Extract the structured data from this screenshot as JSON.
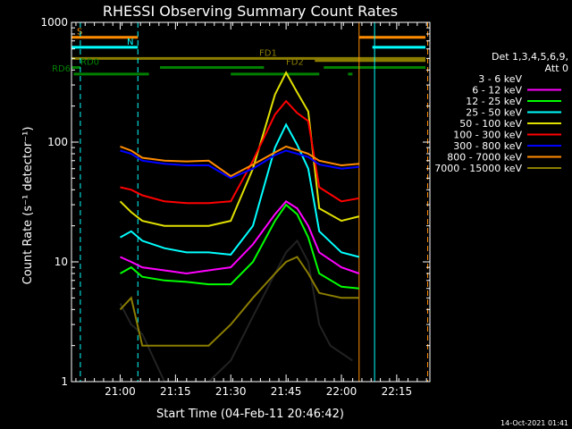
{
  "chart_data": {
    "type": "line",
    "title": "RHESSI Observing Summary Count Rates",
    "ylabel": "Count Rate (s⁻¹ detector⁻¹)",
    "xlabel": "Start Time (04-Feb-11 20:46:42)",
    "yscale": "log",
    "ylim": [
      1,
      1000
    ],
    "xlim_minutes": [
      20.78,
      22.4
    ],
    "y_ticks": [
      "1",
      "10",
      "100",
      "1000"
    ],
    "x_ticks": [
      {
        "t": 21.0,
        "label": "21:00"
      },
      {
        "t": 21.25,
        "label": "21:15"
      },
      {
        "t": 21.5,
        "label": "21:30"
      },
      {
        "t": 21.75,
        "label": "21:45"
      },
      {
        "t": 22.0,
        "label": "22:00"
      },
      {
        "t": 22.25,
        "label": "22:15"
      }
    ],
    "legend_header": [
      "Det 1,3,4,5,6,9,",
      "Att 0"
    ],
    "legend_placement": "right",
    "timestamp": "14-Oct-2021 01:41",
    "series": [
      {
        "name": "3 - 6 keV",
        "color": "#000000",
        "points": [
          [
            21.0,
            4.5
          ],
          [
            21.05,
            3.0
          ],
          [
            21.1,
            2.5
          ],
          [
            21.2,
            1.0
          ],
          [
            21.4,
            1.0
          ],
          [
            21.5,
            1.5
          ],
          [
            21.6,
            3.5
          ],
          [
            21.7,
            8
          ],
          [
            21.75,
            12
          ],
          [
            21.8,
            15
          ],
          [
            21.85,
            10
          ],
          [
            21.9,
            3
          ],
          [
            21.95,
            2
          ],
          [
            22.05,
            1.5
          ]
        ]
      },
      {
        "name": "6 - 12 keV",
        "color": "#ff00ff",
        "points": [
          [
            21.0,
            11
          ],
          [
            21.05,
            10
          ],
          [
            21.1,
            9
          ],
          [
            21.2,
            8.5
          ],
          [
            21.3,
            8
          ],
          [
            21.4,
            8.5
          ],
          [
            21.5,
            9
          ],
          [
            21.6,
            14
          ],
          [
            21.7,
            25
          ],
          [
            21.75,
            32
          ],
          [
            21.8,
            28
          ],
          [
            21.85,
            20
          ],
          [
            21.9,
            12
          ],
          [
            22.0,
            9
          ],
          [
            22.08,
            8
          ]
        ]
      },
      {
        "name": "12 - 25 keV",
        "color": "#00ff00",
        "points": [
          [
            21.0,
            8
          ],
          [
            21.05,
            9
          ],
          [
            21.1,
            7.5
          ],
          [
            21.2,
            7
          ],
          [
            21.3,
            6.8
          ],
          [
            21.4,
            6.5
          ],
          [
            21.5,
            6.5
          ],
          [
            21.6,
            10
          ],
          [
            21.7,
            22
          ],
          [
            21.75,
            30
          ],
          [
            21.8,
            25
          ],
          [
            21.85,
            16
          ],
          [
            21.9,
            8
          ],
          [
            22.0,
            6.2
          ],
          [
            22.08,
            6
          ]
        ]
      },
      {
        "name": "25 - 50 keV",
        "color": "#00ffff",
        "points": [
          [
            21.0,
            16
          ],
          [
            21.05,
            18
          ],
          [
            21.1,
            15
          ],
          [
            21.2,
            13
          ],
          [
            21.3,
            12
          ],
          [
            21.4,
            12
          ],
          [
            21.5,
            11.5
          ],
          [
            21.6,
            20
          ],
          [
            21.7,
            90
          ],
          [
            21.75,
            140
          ],
          [
            21.8,
            95
          ],
          [
            21.85,
            60
          ],
          [
            21.9,
            18
          ],
          [
            22.0,
            12
          ],
          [
            22.08,
            11
          ]
        ]
      },
      {
        "name": "50 - 100 keV",
        "color": "#e0e000",
        "points": [
          [
            21.0,
            32
          ],
          [
            21.05,
            26
          ],
          [
            21.1,
            22
          ],
          [
            21.2,
            20
          ],
          [
            21.3,
            20
          ],
          [
            21.4,
            20
          ],
          [
            21.5,
            22
          ],
          [
            21.6,
            60
          ],
          [
            21.7,
            250
          ],
          [
            21.75,
            380
          ],
          [
            21.8,
            260
          ],
          [
            21.85,
            180
          ],
          [
            21.9,
            28
          ],
          [
            22.0,
            22
          ],
          [
            22.08,
            24
          ]
        ]
      },
      {
        "name": "100 - 300 keV",
        "color": "#ff0000",
        "points": [
          [
            21.0,
            42
          ],
          [
            21.05,
            40
          ],
          [
            21.1,
            36
          ],
          [
            21.2,
            32
          ],
          [
            21.3,
            31
          ],
          [
            21.4,
            31
          ],
          [
            21.5,
            32
          ],
          [
            21.6,
            70
          ],
          [
            21.7,
            170
          ],
          [
            21.75,
            220
          ],
          [
            21.8,
            175
          ],
          [
            21.85,
            150
          ],
          [
            21.9,
            42
          ],
          [
            22.0,
            32
          ],
          [
            22.08,
            34
          ]
        ]
      },
      {
        "name": "300 - 800 keV",
        "color": "#0000ff",
        "points": [
          [
            21.0,
            85
          ],
          [
            21.05,
            80
          ],
          [
            21.1,
            70
          ],
          [
            21.2,
            66
          ],
          [
            21.3,
            64
          ],
          [
            21.4,
            64
          ],
          [
            21.5,
            50
          ],
          [
            21.6,
            60
          ],
          [
            21.7,
            78
          ],
          [
            21.75,
            85
          ],
          [
            21.8,
            80
          ],
          [
            21.85,
            75
          ],
          [
            21.9,
            65
          ],
          [
            22.0,
            60
          ],
          [
            22.08,
            62
          ]
        ]
      },
      {
        "name": "800 - 7000 keV",
        "color": "#ff8c00",
        "points": [
          [
            21.0,
            92
          ],
          [
            21.05,
            85
          ],
          [
            21.1,
            74
          ],
          [
            21.2,
            70
          ],
          [
            21.3,
            69
          ],
          [
            21.4,
            70
          ],
          [
            21.5,
            52
          ],
          [
            21.6,
            65
          ],
          [
            21.7,
            82
          ],
          [
            21.75,
            92
          ],
          [
            21.8,
            86
          ],
          [
            21.85,
            80
          ],
          [
            21.9,
            70
          ],
          [
            22.0,
            64
          ],
          [
            22.08,
            66
          ]
        ]
      },
      {
        "name": "7000 - 15000 keV",
        "color": "#8b7d00",
        "points": [
          [
            21.0,
            4
          ],
          [
            21.05,
            5
          ],
          [
            21.1,
            2
          ],
          [
            21.2,
            2
          ],
          [
            21.3,
            2
          ],
          [
            21.4,
            2
          ],
          [
            21.5,
            3
          ],
          [
            21.6,
            5
          ],
          [
            21.7,
            8
          ],
          [
            21.75,
            10
          ],
          [
            21.8,
            11
          ],
          [
            21.85,
            8
          ],
          [
            21.9,
            5.5
          ],
          [
            22.0,
            5
          ],
          [
            22.08,
            5
          ]
        ]
      }
    ],
    "flags": [
      {
        "name": "S",
        "color": "#ff8c00",
        "label_y": 750,
        "segments": [
          [
            20.78,
            21.08
          ],
          [
            22.08,
            22.38
          ]
        ]
      },
      {
        "name": "N",
        "color": "#00ffff",
        "label_y": 620,
        "segments": [
          [
            20.78,
            21.08
          ],
          [
            22.14,
            22.38
          ]
        ]
      },
      {
        "name": "FD1",
        "color": "#8b7d00",
        "label_y": 500,
        "segments": [
          [
            20.78,
            22.38
          ]
        ]
      },
      {
        "name": "FD2",
        "color": "#8b7d00",
        "label_y": 480,
        "segments": [
          [
            21.88,
            22.38
          ]
        ]
      },
      {
        "name": "RD0",
        "color": "#008000",
        "label_y": 420,
        "segments": [
          [
            20.78,
            20.82
          ],
          [
            21.18,
            21.65
          ],
          [
            21.92,
            22.38
          ]
        ]
      },
      {
        "name": "RD6",
        "color": "#008000",
        "label_y": 370,
        "segments": [
          [
            20.79,
            21.13
          ],
          [
            21.5,
            21.9
          ],
          [
            22.03,
            22.05
          ]
        ]
      }
    ],
    "vlines": [
      {
        "t": 21.08,
        "color": "#00ffff",
        "dashed": true
      },
      {
        "t": 22.08,
        "color": "#ff8c00",
        "dashed": false
      },
      {
        "t": 22.15,
        "color": "#00ffff",
        "dashed": false
      },
      {
        "t": 22.39,
        "color": "#ff8c00",
        "dashed": true
      },
      {
        "t": 20.82,
        "color": "#00ffff",
        "dashed": true
      }
    ]
  }
}
